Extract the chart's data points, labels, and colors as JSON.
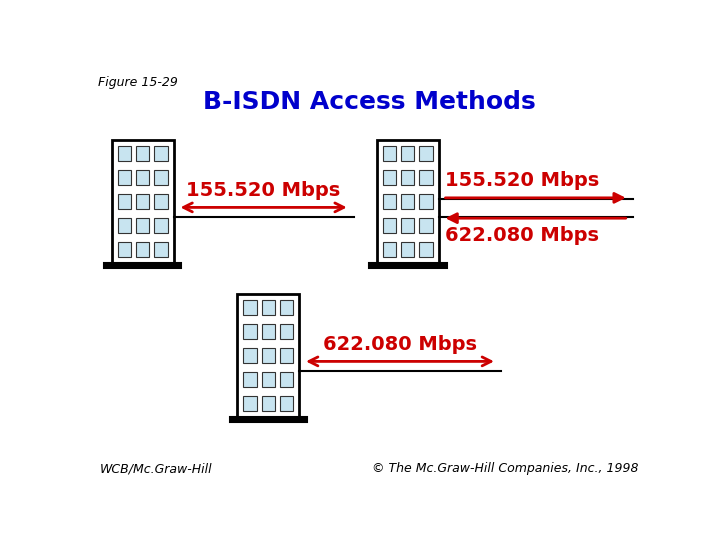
{
  "title": "B-ISDN Access Methods",
  "figure_label": "Figure 15-29",
  "title_color": "#0000CC",
  "title_fontsize": 18,
  "arrow_color": "#CC0000",
  "line_color": "#000000",
  "building_fill": "#FFFFFF",
  "building_outline": "#000000",
  "window_fill": "#C8E4F0",
  "window_outline": "#333333",
  "label_155": "155.520 Mbps",
  "label_622": "622.080 Mbps",
  "wcb_text": "WCB/Mc.Graw-Hill",
  "copyright_text": "© The Mc.Graw-Hill Companies, Inc., 1998",
  "bg_color": "#FFFFFF",
  "win_cols": 3,
  "win_rows": 5,
  "label_fontsize": 14
}
